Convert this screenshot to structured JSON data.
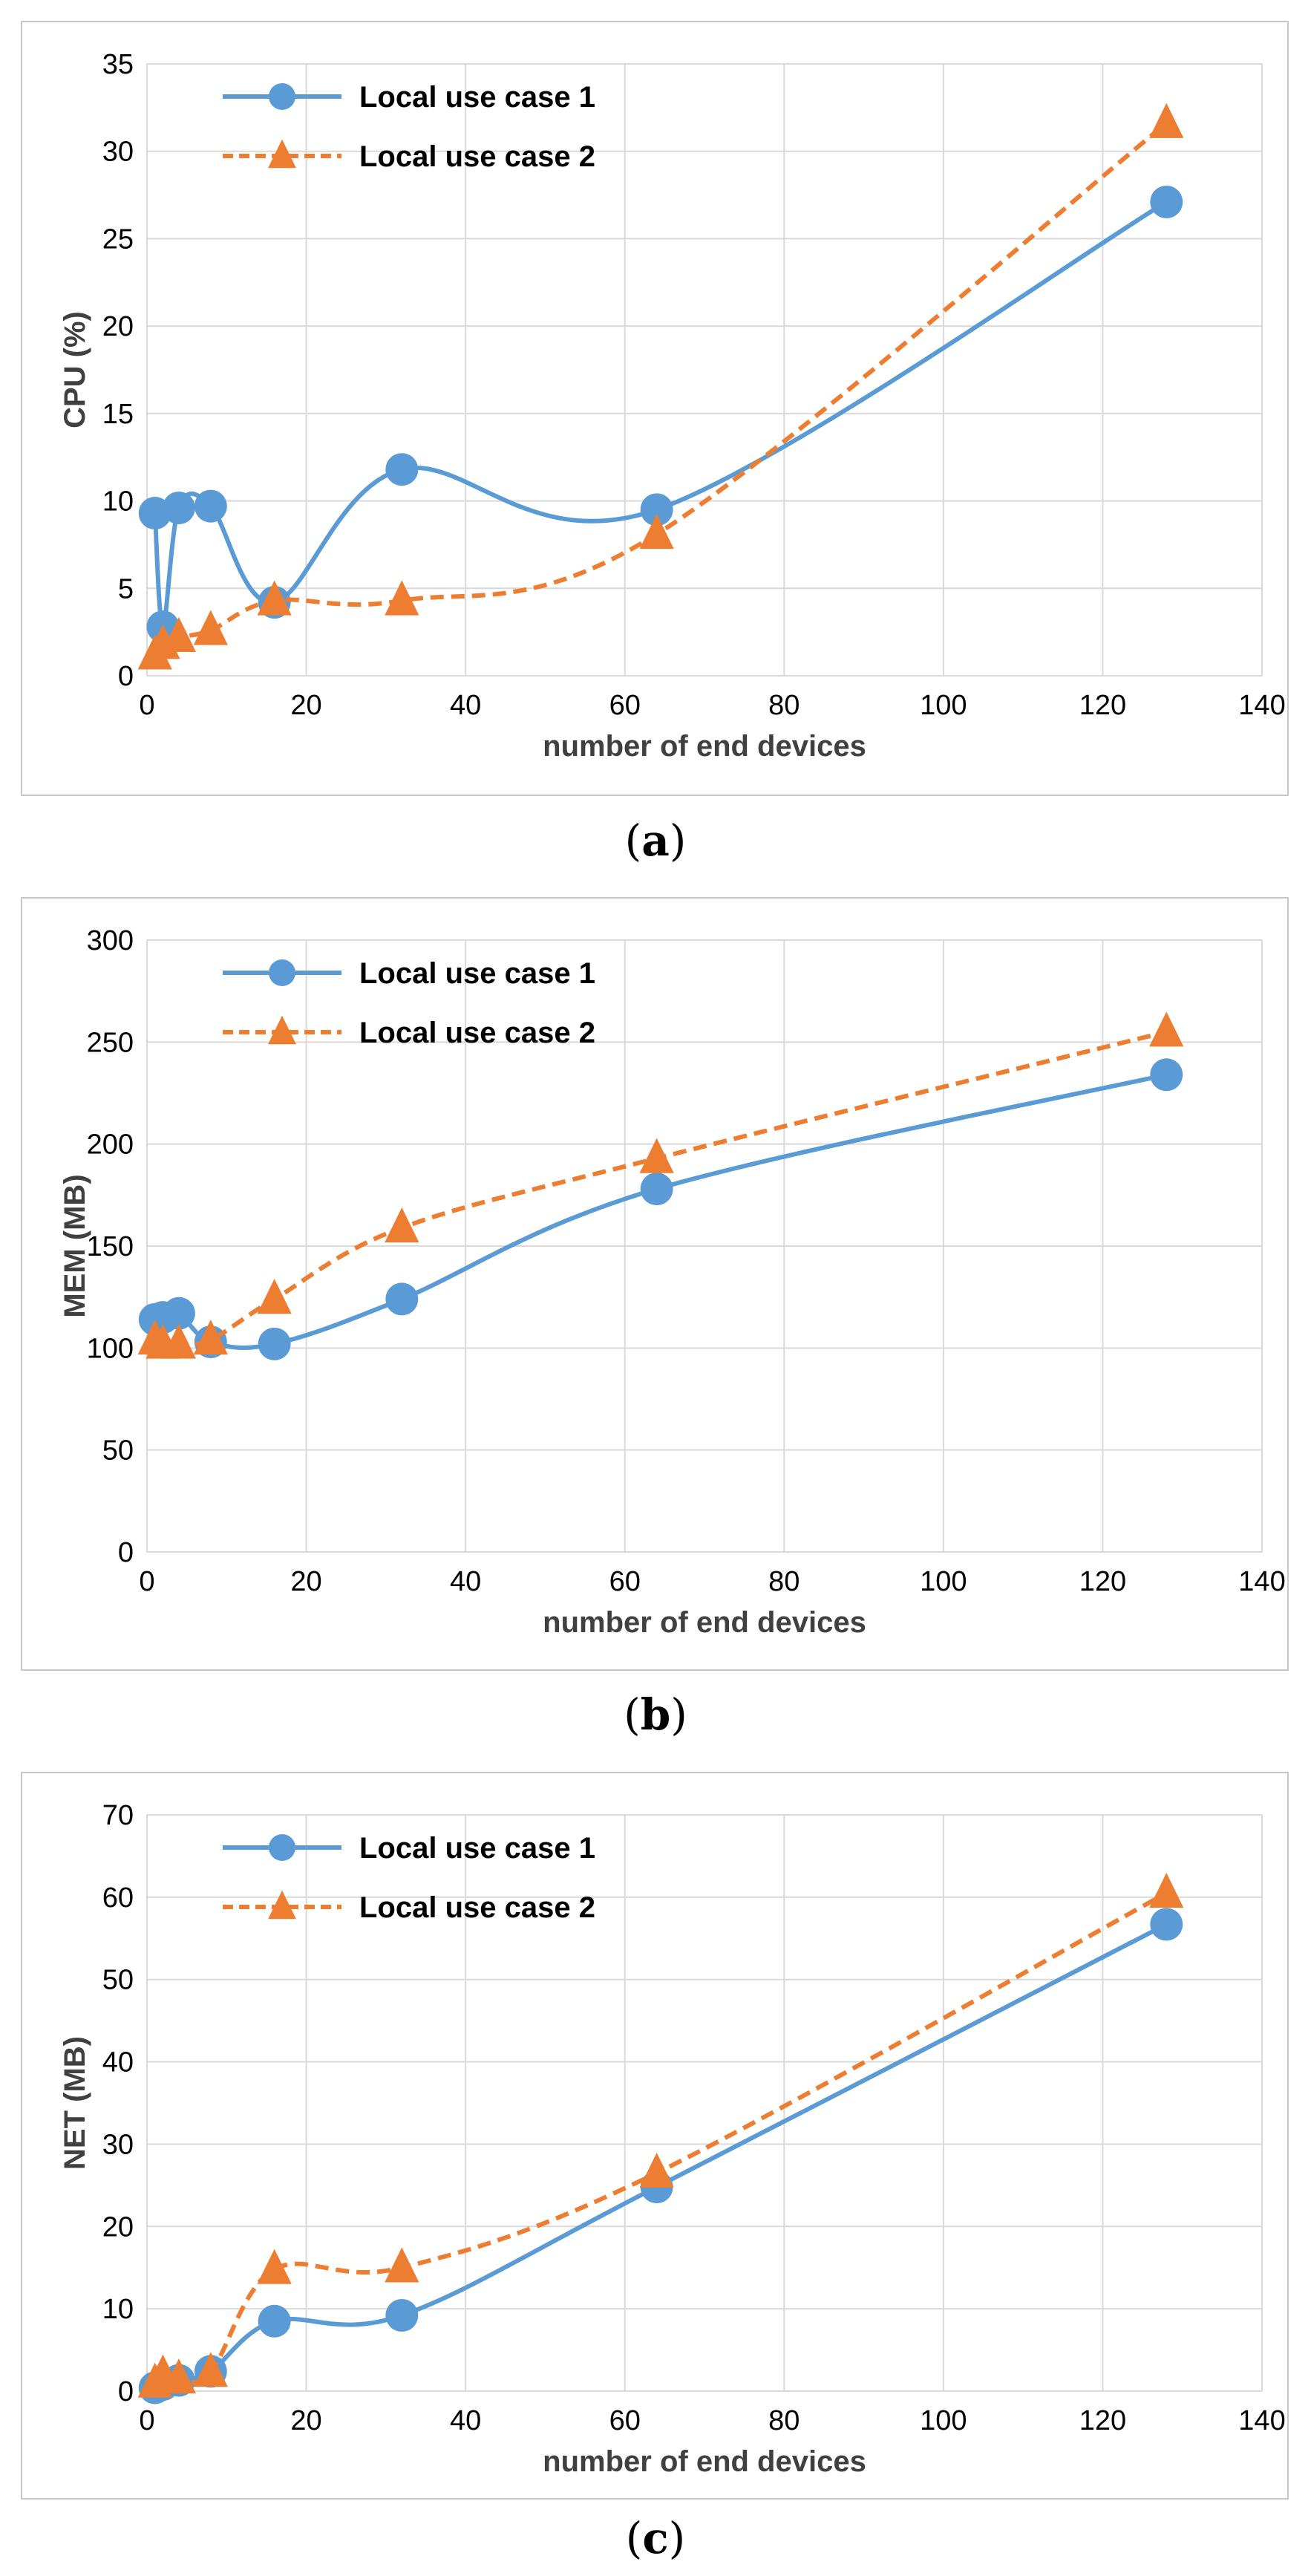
{
  "chart_data": [
    {
      "type": "line",
      "title": "",
      "caption_label": "a",
      "xlabel": "number of end devices",
      "ylabel": "CPU (%)",
      "xlim": [
        0,
        140
      ],
      "xticks": [
        0,
        20,
        40,
        60,
        80,
        100,
        120,
        140
      ],
      "ylim": [
        0,
        35
      ],
      "yticks": [
        0,
        5,
        10,
        15,
        20,
        25,
        30,
        35
      ],
      "grid": true,
      "legend_position": "top-left",
      "series": [
        {
          "name": "Local use case 1",
          "color": "#5b9bd5",
          "style": "solid",
          "marker": "circle",
          "x": [
            1,
            2,
            4,
            8,
            16,
            32,
            64,
            128
          ],
          "y": [
            9.3,
            2.8,
            9.6,
            9.7,
            4.2,
            11.8,
            9.5,
            27.1
          ]
        },
        {
          "name": "Local use case 2",
          "color": "#ed7d31",
          "style": "dashed",
          "marker": "triangle",
          "x": [
            1,
            2,
            4,
            8,
            16,
            32,
            64,
            128
          ],
          "y": [
            1.2,
            1.8,
            2.2,
            2.6,
            4.3,
            4.3,
            8.1,
            31.6
          ]
        }
      ]
    },
    {
      "type": "line",
      "title": "",
      "caption_label": "b",
      "xlabel": "number of end devices",
      "ylabel": "MEM (MB)",
      "xlim": [
        0,
        140
      ],
      "xticks": [
        0,
        20,
        40,
        60,
        80,
        100,
        120,
        140
      ],
      "ylim": [
        0,
        300
      ],
      "yticks": [
        0,
        50,
        100,
        150,
        200,
        250,
        300
      ],
      "grid": true,
      "legend_position": "top-left",
      "series": [
        {
          "name": "Local use case 1",
          "color": "#5b9bd5",
          "style": "solid",
          "marker": "circle",
          "x": [
            1,
            2,
            4,
            8,
            16,
            32,
            64,
            128
          ],
          "y": [
            114,
            115,
            117,
            103,
            102,
            124,
            178,
            234
          ]
        },
        {
          "name": "Local use case 2",
          "color": "#ed7d31",
          "style": "dashed",
          "marker": "triangle",
          "x": [
            1,
            2,
            4,
            8,
            16,
            32,
            64,
            128
          ],
          "y": [
            104,
            102,
            102,
            104,
            124,
            159,
            193,
            255
          ]
        }
      ]
    },
    {
      "type": "line",
      "title": "",
      "caption_label": "c",
      "xlabel": "number of end devices",
      "ylabel": "NET (MB)",
      "xlim": [
        0,
        140
      ],
      "xticks": [
        0,
        20,
        40,
        60,
        80,
        100,
        120,
        140
      ],
      "ylim": [
        0,
        70
      ],
      "yticks": [
        0,
        10,
        20,
        30,
        40,
        50,
        60,
        70
      ],
      "grid": true,
      "legend_position": "top-left",
      "series": [
        {
          "name": "Local use case 1",
          "color": "#5b9bd5",
          "style": "solid",
          "marker": "circle",
          "x": [
            1,
            2,
            4,
            8,
            16,
            32,
            64,
            128
          ],
          "y": [
            0.4,
            0.8,
            1.3,
            2.4,
            8.5,
            9.2,
            24.8,
            56.7
          ]
        },
        {
          "name": "Local use case 2",
          "color": "#ed7d31",
          "style": "dashed",
          "marker": "triangle",
          "x": [
            1,
            2,
            4,
            8,
            16,
            32,
            64,
            128
          ],
          "y": [
            1.0,
            2.0,
            1.5,
            2.3,
            14.8,
            15.0,
            26.5,
            60.5
          ]
        }
      ]
    }
  ]
}
